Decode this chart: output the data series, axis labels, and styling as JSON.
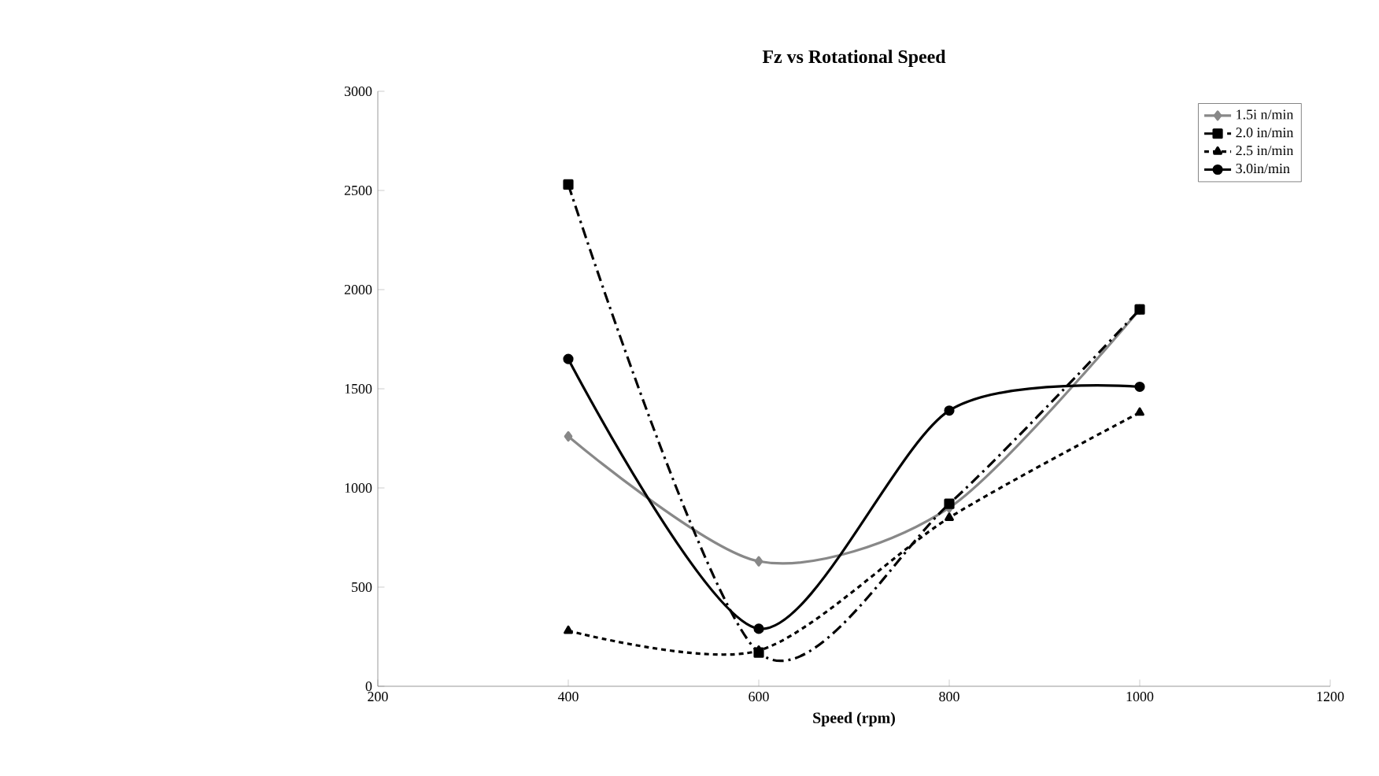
{
  "chart_data": {
    "type": "line",
    "title": "Fz vs Rotational Speed",
    "xlabel": "Speed (rpm)",
    "x": [
      400,
      600,
      800,
      1000
    ],
    "series": [
      {
        "name": "1.5i n/min",
        "color": "#888888",
        "marker": "diamond",
        "line_style": "solid",
        "values": [
          1260,
          630,
          900,
          1900
        ]
      },
      {
        "name": "2.0 in/min",
        "color": "#000000",
        "marker": "square",
        "line_style": "dashed",
        "values": [
          2530,
          170,
          920,
          1900
        ]
      },
      {
        "name": "2.5 in/min",
        "color": "#000000",
        "marker": "triangle",
        "line_style": "dotted",
        "values": [
          280,
          180,
          850,
          1380
        ]
      },
      {
        "name": "3.0in/min",
        "color": "#000000",
        "marker": "circle",
        "line_style": "solid",
        "values": [
          1650,
          290,
          1390,
          1510
        ]
      }
    ],
    "xlim": [
      200,
      1200
    ],
    "xticks": [
      200,
      400,
      600,
      800,
      1000,
      1200
    ],
    "ylim": [
      0,
      3000
    ],
    "yticks": [
      0,
      500,
      1000,
      1500,
      2000,
      2500,
      3000
    ],
    "grid": false,
    "legend": "top right"
  }
}
